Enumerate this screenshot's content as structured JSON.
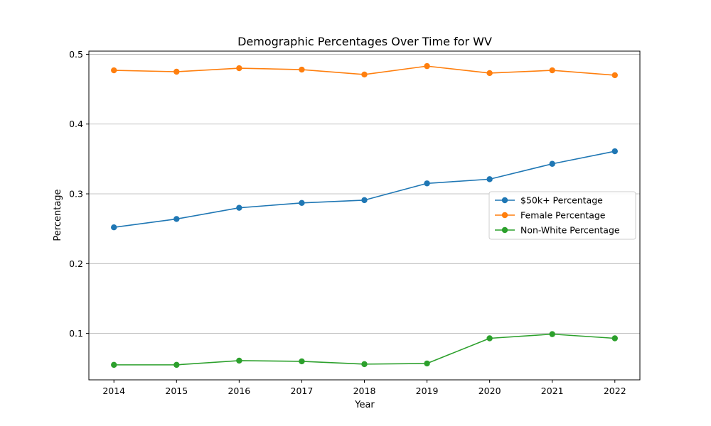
{
  "chart_data": {
    "type": "line",
    "title": "Demographic Percentages Over Time for WV",
    "xlabel": "Year",
    "ylabel": "Percentage",
    "x": [
      2014,
      2015,
      2016,
      2017,
      2018,
      2019,
      2020,
      2021,
      2022
    ],
    "xlim": [
      2013.6,
      2022.4
    ],
    "ylim": [
      0.0335,
      0.5045
    ],
    "yticks": [
      0.1,
      0.2,
      0.3,
      0.4,
      0.5
    ],
    "ytick_labels": [
      "0.1",
      "0.2",
      "0.3",
      "0.4",
      "0.5"
    ],
    "grid": "y",
    "legend_position": "center-right",
    "series": [
      {
        "name": "$50k+ Percentage",
        "color": "#1f77b4",
        "values": [
          0.252,
          0.264,
          0.28,
          0.287,
          0.291,
          0.315,
          0.321,
          0.343,
          0.361
        ]
      },
      {
        "name": "Female Percentage",
        "color": "#ff7f0e",
        "values": [
          0.477,
          0.475,
          0.48,
          0.478,
          0.471,
          0.483,
          0.473,
          0.477,
          0.47
        ]
      },
      {
        "name": "Non-White Percentage",
        "color": "#2ca02c",
        "values": [
          0.055,
          0.055,
          0.061,
          0.06,
          0.056,
          0.057,
          0.093,
          0.099,
          0.093
        ]
      }
    ]
  }
}
